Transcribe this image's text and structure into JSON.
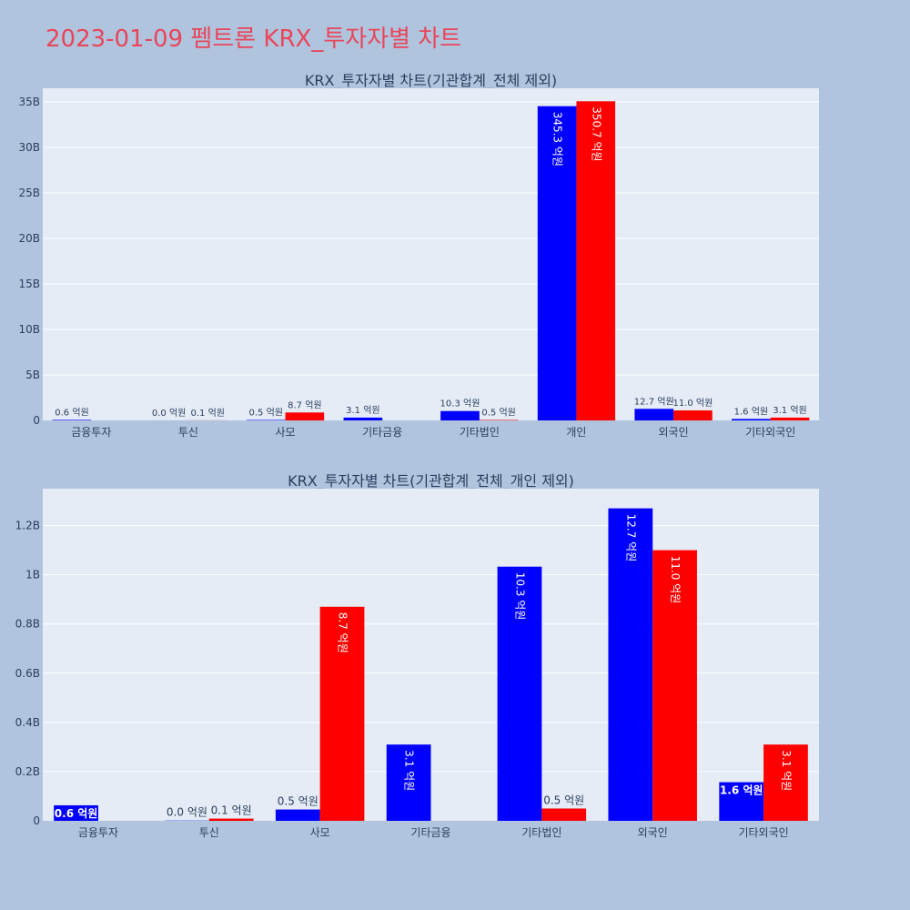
{
  "title": "2023-01-09 펨트론 KRX_투자자별 차트",
  "colors": {
    "buy": "#0000ff",
    "sell": "#ff0000",
    "plot_bg": "#e5ecf6",
    "page_bg": "#b0c4de",
    "title": "#e8465a",
    "text": "#2a3f5f"
  },
  "chart_data": [
    {
      "type": "bar",
      "title": "KRX_투자자별 차트(기관합계_전체 제외)",
      "categories": [
        "금융투자",
        "투신",
        "사모",
        "기타금융",
        "기타법인",
        "개인",
        "외국인",
        "기타외국인"
      ],
      "series": [
        {
          "values": [
            0.06,
            0.004,
            0.05,
            0.31,
            1.03,
            34.53,
            1.27,
            0.16
          ],
          "labels": [
            "0.6 억원",
            "0.0 억원",
            "0.5 억원",
            "3.1 억원",
            "10.3 억원",
            "345.3 억원",
            "12.7 억원",
            "1.6 억원"
          ]
        },
        {
          "values": [
            0,
            0.01,
            0.87,
            0,
            0.05,
            35.07,
            1.1,
            0.31
          ],
          "labels": [
            "",
            "0.1 억원",
            "8.7 억원",
            "",
            "0.5 억원",
            "350.7 억원",
            "11.0 억원",
            "3.1 억원"
          ]
        }
      ],
      "ylim": [
        0,
        36.5
      ],
      "yticks": [
        0,
        5,
        10,
        15,
        20,
        25,
        30,
        35
      ],
      "ytick_labels": [
        "0",
        "5B",
        "10B",
        "15B",
        "20B",
        "25B",
        "30B",
        "35B"
      ],
      "grid": true
    },
    {
      "type": "bar",
      "title": "KRX_투자자별 차트(기관합계_전체_개인 제외)",
      "categories": [
        "금융투자",
        "투신",
        "사모",
        "기타금융",
        "기타법인",
        "외국인",
        "기타외국인"
      ],
      "series": [
        {
          "values": [
            0.063,
            0.001,
            0.046,
            0.31,
            1.033,
            1.27,
            0.157
          ],
          "labels": [
            "0.6 억원",
            "0.0 억원",
            "0.5 억원",
            "3.1 억원",
            "10.3 억원",
            "12.7 억원",
            "1.6 억원"
          ]
        },
        {
          "values": [
            0,
            0.009,
            0.87,
            0,
            0.05,
            1.1,
            0.31
          ],
          "labels": [
            "",
            "0.1 억원",
            "8.7 억원",
            "",
            "0.5 억원",
            "11.0 억원",
            "3.1 억원"
          ]
        }
      ],
      "ylim": [
        0,
        1.35
      ],
      "yticks": [
        0,
        0.2,
        0.4,
        0.6,
        0.8,
        1.0,
        1.2
      ],
      "ytick_labels": [
        "0",
        "0.2B",
        "0.4B",
        "0.6B",
        "0.8B",
        "1B",
        "1.2B"
      ],
      "grid": true
    }
  ]
}
